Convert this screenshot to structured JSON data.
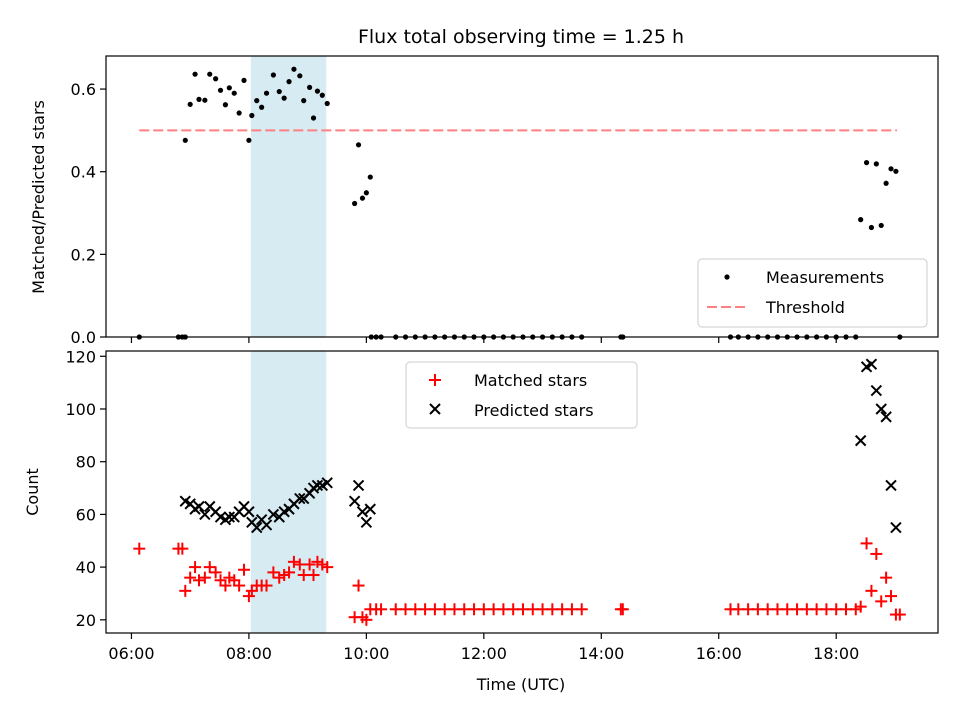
{
  "chart_data": [
    {
      "type": "scatter",
      "title": "Flux total observing time = 1.25 h",
      "ylabel": "Matched/Predicted stars",
      "xlabel": "",
      "ylim": [
        0,
        0.68
      ],
      "xlim": [
        "05:34",
        "19:44"
      ],
      "yticks": [
        "0.0",
        "0.2",
        "0.4",
        "0.6"
      ],
      "highlight_span": {
        "start": "08:02",
        "end": "09:19",
        "color": "#add8e6"
      },
      "legend": {
        "placement": "lower right",
        "entries": [
          "Measurements",
          "Threshold"
        ]
      },
      "threshold": {
        "name": "Threshold",
        "value": 0.5,
        "x_start": "06:08",
        "x_end": "19:02",
        "color": "#ff8080"
      },
      "series": [
        {
          "name": "Measurements",
          "color": "#000000",
          "points": [
            [
              "06:08",
              0.0
            ],
            [
              "06:48",
              0.0
            ],
            [
              "06:52",
              0.0
            ],
            [
              "06:55",
              0.0
            ],
            [
              "06:55",
              0.476
            ],
            [
              "07:00",
              0.563
            ],
            [
              "07:05",
              0.636
            ],
            [
              "07:09",
              0.575
            ],
            [
              "07:15",
              0.573
            ],
            [
              "07:20",
              0.636
            ],
            [
              "07:26",
              0.625
            ],
            [
              "07:31",
              0.597
            ],
            [
              "07:36",
              0.562
            ],
            [
              "07:40",
              0.603
            ],
            [
              "07:45",
              0.59
            ],
            [
              "07:50",
              0.542
            ],
            [
              "07:55",
              0.621
            ],
            [
              "08:00",
              0.476
            ],
            [
              "08:03",
              0.536
            ],
            [
              "08:08",
              0.572
            ],
            [
              "08:13",
              0.556
            ],
            [
              "08:18",
              0.59
            ],
            [
              "08:25",
              0.634
            ],
            [
              "08:31",
              0.594
            ],
            [
              "08:36",
              0.578
            ],
            [
              "08:41",
              0.618
            ],
            [
              "08:46",
              0.648
            ],
            [
              "08:52",
              0.632
            ],
            [
              "08:56",
              0.572
            ],
            [
              "09:02",
              0.604
            ],
            [
              "09:06",
              0.53
            ],
            [
              "09:10",
              0.595
            ],
            [
              "09:15",
              0.585
            ],
            [
              "09:20",
              0.565
            ],
            [
              "09:48",
              0.323
            ],
            [
              "09:52",
              0.465
            ],
            [
              "09:56",
              0.336
            ],
            [
              "10:00",
              0.349
            ],
            [
              "10:04",
              0.387
            ],
            [
              "10:05",
              0.0
            ],
            [
              "10:10",
              0.0
            ],
            [
              "10:15",
              0.0
            ],
            [
              "10:30",
              0.0
            ],
            [
              "10:40",
              0.0
            ],
            [
              "10:50",
              0.0
            ],
            [
              "11:00",
              0.0
            ],
            [
              "11:10",
              0.0
            ],
            [
              "11:20",
              0.0
            ],
            [
              "11:30",
              0.0
            ],
            [
              "11:40",
              0.0
            ],
            [
              "11:50",
              0.0
            ],
            [
              "12:00",
              0.0
            ],
            [
              "12:10",
              0.0
            ],
            [
              "12:20",
              0.0
            ],
            [
              "12:30",
              0.0
            ],
            [
              "12:40",
              0.0
            ],
            [
              "12:50",
              0.0
            ],
            [
              "13:00",
              0.0
            ],
            [
              "13:10",
              0.0
            ],
            [
              "13:20",
              0.0
            ],
            [
              "13:30",
              0.0
            ],
            [
              "13:40",
              0.0
            ],
            [
              "14:20",
              0.0
            ],
            [
              "14:22",
              0.0
            ],
            [
              "16:12",
              0.0
            ],
            [
              "16:20",
              0.0
            ],
            [
              "16:30",
              0.0
            ],
            [
              "16:40",
              0.0
            ],
            [
              "16:50",
              0.0
            ],
            [
              "17:00",
              0.0
            ],
            [
              "17:10",
              0.0
            ],
            [
              "17:20",
              0.0
            ],
            [
              "17:30",
              0.0
            ],
            [
              "17:40",
              0.0
            ],
            [
              "17:50",
              0.0
            ],
            [
              "18:00",
              0.0
            ],
            [
              "18:10",
              0.0
            ],
            [
              "18:20",
              0.0
            ],
            [
              "18:25",
              0.284
            ],
            [
              "18:31",
              0.422
            ],
            [
              "18:36",
              0.265
            ],
            [
              "18:41",
              0.419
            ],
            [
              "18:46",
              0.27
            ],
            [
              "18:51",
              0.372
            ],
            [
              "18:56",
              0.407
            ],
            [
              "19:01",
              0.401
            ],
            [
              "19:05",
              0.0
            ]
          ]
        }
      ]
    },
    {
      "type": "scatter",
      "title": "",
      "ylabel": "Count",
      "xlabel": "Time (UTC)",
      "ylim": [
        15,
        122
      ],
      "xlim": [
        "05:34",
        "19:44"
      ],
      "yticks": [
        "20",
        "40",
        "60",
        "80",
        "100",
        "120"
      ],
      "xticks": [
        "06:00",
        "08:00",
        "10:00",
        "12:00",
        "14:00",
        "16:00",
        "18:00"
      ],
      "highlight_span": {
        "start": "08:02",
        "end": "09:19",
        "color": "#add8e6"
      },
      "legend": {
        "placement": "upper center",
        "entries": [
          "Matched stars",
          "Predicted stars"
        ]
      },
      "series": [
        {
          "name": "Matched stars",
          "marker": "plus",
          "color": "#ff0000",
          "points": [
            [
              "06:08",
              47
            ],
            [
              "06:48",
              47
            ],
            [
              "06:52",
              47
            ],
            [
              "06:55",
              31
            ],
            [
              "07:00",
              36
            ],
            [
              "07:05",
              40
            ],
            [
              "07:09",
              35
            ],
            [
              "07:15",
              36
            ],
            [
              "07:20",
              40
            ],
            [
              "07:26",
              38
            ],
            [
              "07:31",
              35
            ],
            [
              "07:36",
              33
            ],
            [
              "07:40",
              36
            ],
            [
              "07:45",
              35
            ],
            [
              "07:50",
              33
            ],
            [
              "07:55",
              39
            ],
            [
              "08:00",
              29
            ],
            [
              "08:03",
              31
            ],
            [
              "08:08",
              33
            ],
            [
              "08:13",
              33
            ],
            [
              "08:18",
              33
            ],
            [
              "08:25",
              38
            ],
            [
              "08:31",
              36
            ],
            [
              "08:36",
              37
            ],
            [
              "08:41",
              38
            ],
            [
              "08:46",
              42
            ],
            [
              "08:52",
              41
            ],
            [
              "08:56",
              37
            ],
            [
              "09:02",
              41
            ],
            [
              "09:06",
              37
            ],
            [
              "09:10",
              42
            ],
            [
              "09:15",
              41
            ],
            [
              "09:20",
              40
            ],
            [
              "09:48",
              21
            ],
            [
              "09:52",
              33
            ],
            [
              "09:56",
              21
            ],
            [
              "10:00",
              20
            ],
            [
              "10:04",
              24
            ],
            [
              "10:10",
              24
            ],
            [
              "10:15",
              24
            ],
            [
              "10:30",
              24
            ],
            [
              "10:40",
              24
            ],
            [
              "10:50",
              24
            ],
            [
              "11:00",
              24
            ],
            [
              "11:10",
              24
            ],
            [
              "11:20",
              24
            ],
            [
              "11:30",
              24
            ],
            [
              "11:40",
              24
            ],
            [
              "11:50",
              24
            ],
            [
              "12:00",
              24
            ],
            [
              "12:10",
              24
            ],
            [
              "12:20",
              24
            ],
            [
              "12:30",
              24
            ],
            [
              "12:40",
              24
            ],
            [
              "12:50",
              24
            ],
            [
              "13:00",
              24
            ],
            [
              "13:10",
              24
            ],
            [
              "13:20",
              24
            ],
            [
              "13:30",
              24
            ],
            [
              "13:40",
              24
            ],
            [
              "14:20",
              24
            ],
            [
              "14:22",
              24
            ],
            [
              "16:12",
              24
            ],
            [
              "16:20",
              24
            ],
            [
              "16:30",
              24
            ],
            [
              "16:40",
              24
            ],
            [
              "16:50",
              24
            ],
            [
              "17:00",
              24
            ],
            [
              "17:10",
              24
            ],
            [
              "17:20",
              24
            ],
            [
              "17:30",
              24
            ],
            [
              "17:40",
              24
            ],
            [
              "17:50",
              24
            ],
            [
              "18:00",
              24
            ],
            [
              "18:10",
              24
            ],
            [
              "18:20",
              24
            ],
            [
              "18:25",
              25
            ],
            [
              "18:31",
              49
            ],
            [
              "18:36",
              31
            ],
            [
              "18:41",
              45
            ],
            [
              "18:46",
              27
            ],
            [
              "18:51",
              36
            ],
            [
              "18:56",
              29
            ],
            [
              "19:01",
              22
            ],
            [
              "19:05",
              22
            ]
          ]
        },
        {
          "name": "Predicted stars",
          "marker": "x",
          "color": "#000000",
          "points": [
            [
              "06:55",
              65
            ],
            [
              "07:00",
              64
            ],
            [
              "07:05",
              62
            ],
            [
              "07:09",
              63
            ],
            [
              "07:15",
              60
            ],
            [
              "07:20",
              63
            ],
            [
              "07:26",
              61
            ],
            [
              "07:31",
              59
            ],
            [
              "07:36",
              58
            ],
            [
              "07:40",
              59
            ],
            [
              "07:45",
              59
            ],
            [
              "07:50",
              61
            ],
            [
              "07:55",
              63
            ],
            [
              "08:00",
              61
            ],
            [
              "08:03",
              57
            ],
            [
              "08:08",
              55
            ],
            [
              "08:13",
              58
            ],
            [
              "08:18",
              56
            ],
            [
              "08:25",
              60
            ],
            [
              "08:31",
              59
            ],
            [
              "08:36",
              61
            ],
            [
              "08:41",
              62
            ],
            [
              "08:46",
              64
            ],
            [
              "08:52",
              66
            ],
            [
              "08:56",
              66
            ],
            [
              "09:02",
              68
            ],
            [
              "09:06",
              70
            ],
            [
              "09:10",
              71
            ],
            [
              "09:15",
              71
            ],
            [
              "09:20",
              72
            ],
            [
              "09:48",
              65
            ],
            [
              "09:52",
              71
            ],
            [
              "09:56",
              61
            ],
            [
              "10:00",
              57
            ],
            [
              "10:04",
              62
            ],
            [
              "18:25",
              88
            ],
            [
              "18:31",
              116
            ],
            [
              "18:36",
              117
            ],
            [
              "18:41",
              107
            ],
            [
              "18:46",
              100
            ],
            [
              "18:51",
              97
            ],
            [
              "18:56",
              71
            ],
            [
              "19:01",
              55
            ]
          ]
        }
      ]
    }
  ]
}
